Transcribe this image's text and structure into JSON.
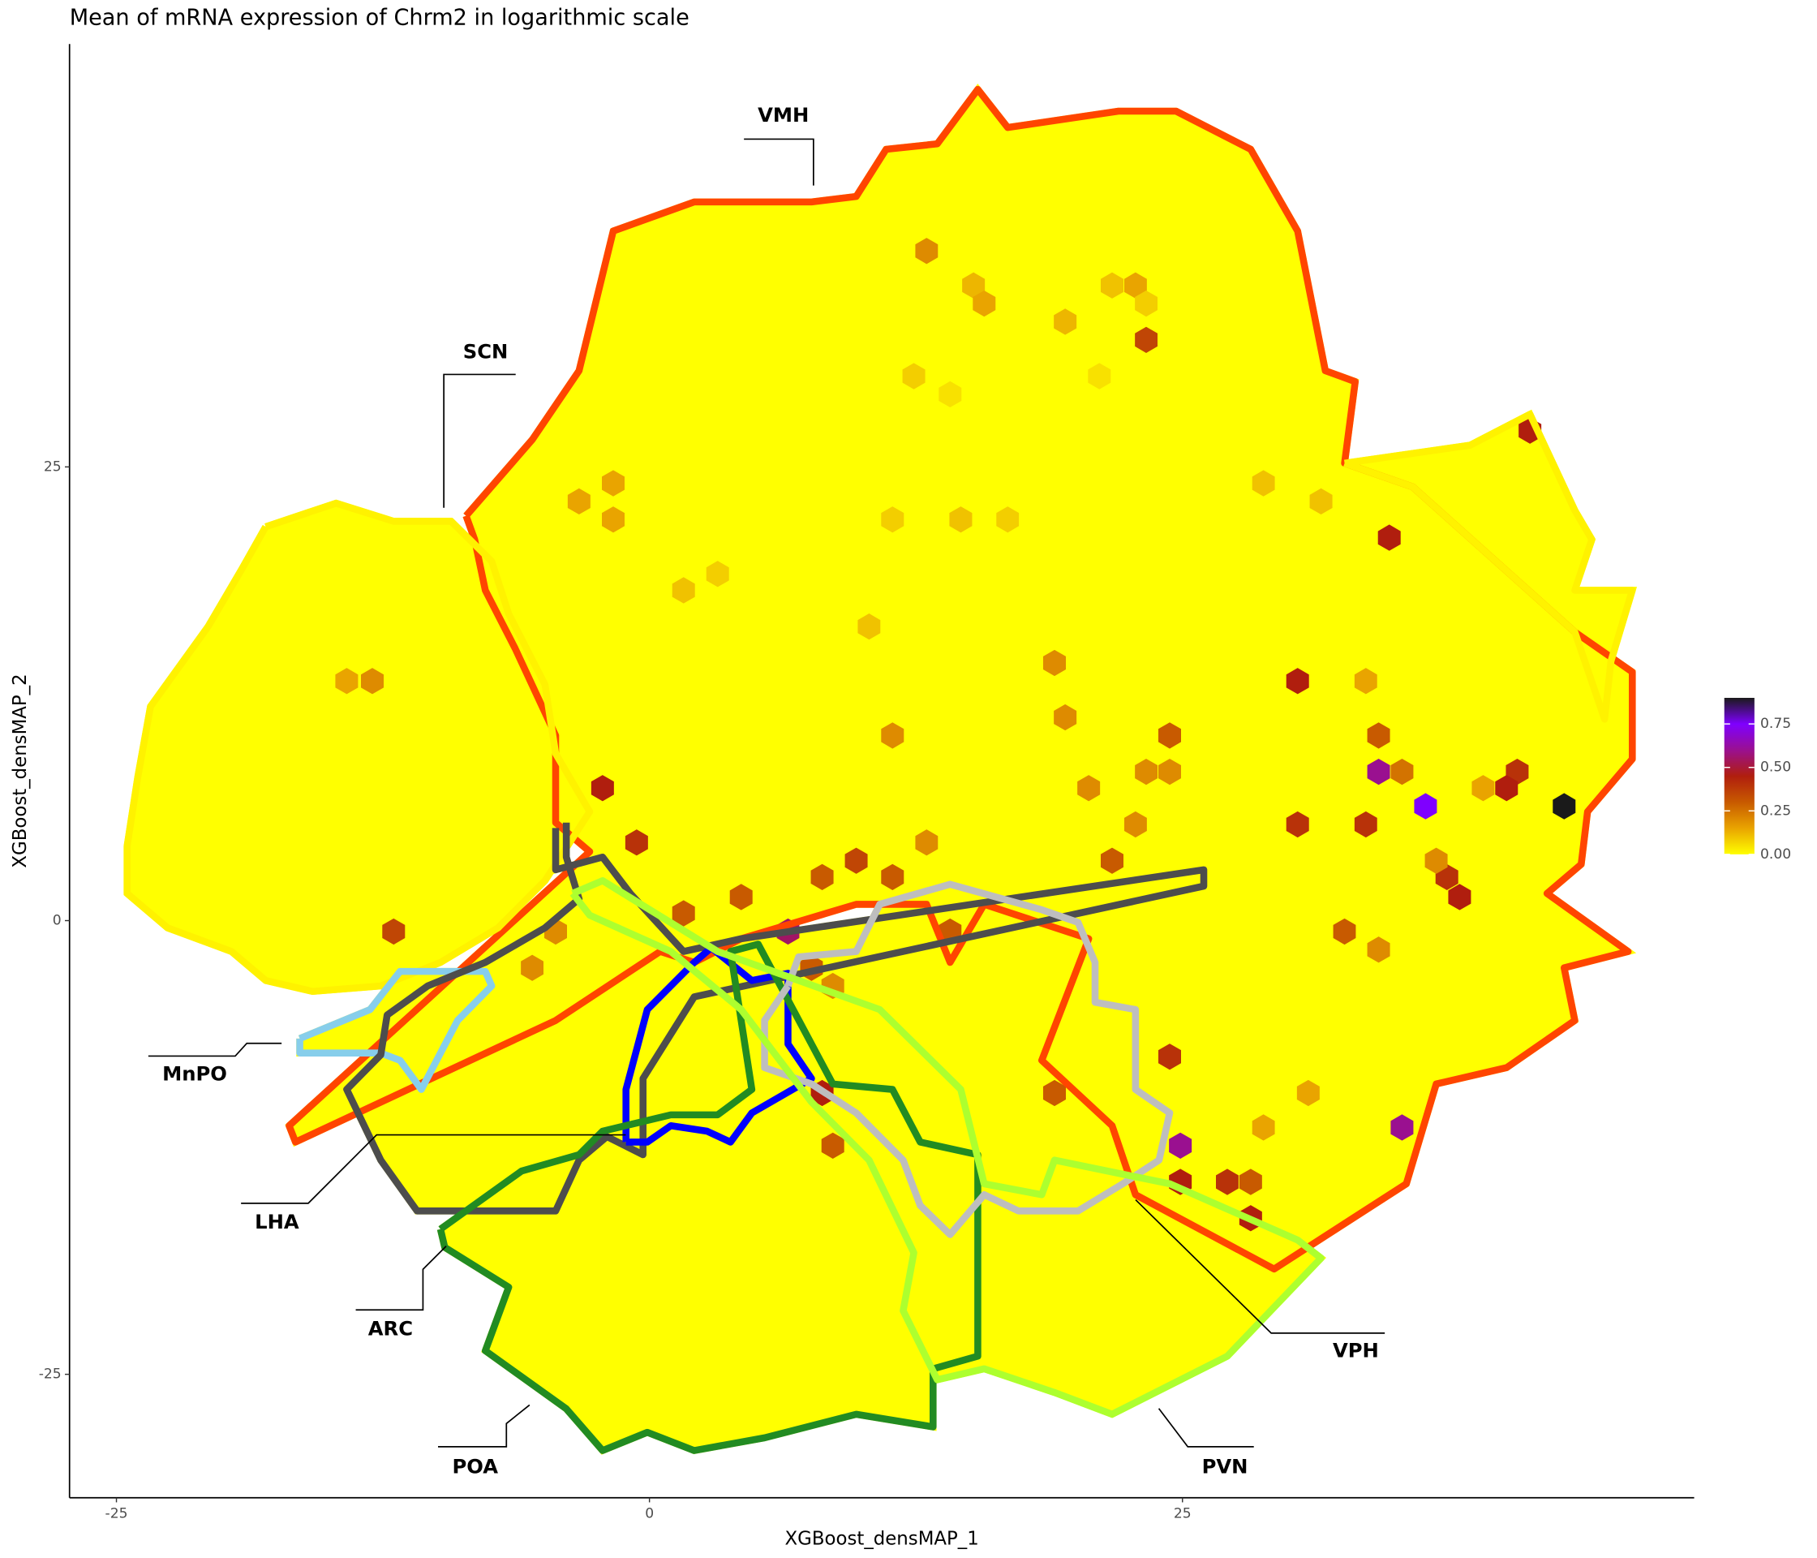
{
  "chart_data": {
    "type": "hexbin",
    "title": "Mean of mRNA expression of Chrm2 in logarithmic scale",
    "x_label": "XGBoost_densMAP_1",
    "y_label": "XGBoost_densMAP_2",
    "xlim": [
      -27.2,
      49.0
    ],
    "ylim": [
      -31.8,
      48.3
    ],
    "xticks": [
      -25,
      0,
      25
    ],
    "yticks": [
      -25,
      0,
      25
    ],
    "colorbar": {
      "lim": [
        0,
        0.9
      ],
      "colors": [
        "#FFFF00",
        "#E9A400",
        "#C85A00",
        "#B01E0E",
        "#9A1090",
        "#7F00FF",
        "#1A1A1A"
      ],
      "ticks": [
        {
          "value": 0,
          "label": "0.00"
        },
        {
          "value": 0.25,
          "label": "0.25"
        },
        {
          "value": 0.5,
          "label": "0.50"
        },
        {
          "value": 0.75,
          "label": "0.75"
        }
      ]
    },
    "hexbins": {
      "x": [
        13.0,
        15.2,
        15.7,
        19.5,
        21.7,
        22.8,
        23.3,
        23.3,
        12.4,
        14.1,
        21.1,
        41.3,
        -1.7,
        -3.3,
        -1.7,
        11.4,
        14.6,
        16.8,
        34.7,
        31.5,
        28.8,
        1.6,
        3.2,
        10.3,
        19.0,
        30.4,
        33.6,
        -14.2,
        -13.0,
        19.5,
        11.4,
        24.4,
        34.2,
        -2.2,
        34.2,
        36.4,
        42.9,
        35.3,
        40.7,
        40.2,
        39.1,
        23.3,
        24.4,
        20.6,
        -0.6,
        9.7,
        22.8,
        30.4,
        33.6,
        37.4,
        38.0,
        36.9,
        21.7,
        13.0,
        11.4,
        8.1,
        4.3,
        -12.0,
        -5.5,
        -4.4,
        1.6,
        6.5,
        7.6,
        8.6,
        14.1,
        32.6,
        34.2,
        24.4,
        19.0,
        8.1,
        8.6,
        35.3,
        24.9,
        24.9,
        27.1,
        28.2,
        28.2,
        30.9,
        28.8
      ],
      "y": [
        36.9,
        35.0,
        34.0,
        33.0,
        35.0,
        35.0,
        34.0,
        32.0,
        30.0,
        29.0,
        30.0,
        27.0,
        24.1,
        23.1,
        22.1,
        22.1,
        22.1,
        22.1,
        21.1,
        23.1,
        24.1,
        18.2,
        19.1,
        16.2,
        14.2,
        13.2,
        13.2,
        13.2,
        13.2,
        11.2,
        10.2,
        10.2,
        10.2,
        7.3,
        8.2,
        6.3,
        6.3,
        8.2,
        8.2,
        7.3,
        7.3,
        8.2,
        8.2,
        7.3,
        4.3,
        3.3,
        5.3,
        5.3,
        5.3,
        2.4,
        1.3,
        3.3,
        3.3,
        4.3,
        2.4,
        2.4,
        1.3,
        -0.6,
        -2.6,
        -0.6,
        0.4,
        -0.6,
        -2.6,
        -3.6,
        -0.6,
        -0.6,
        -1.6,
        -7.5,
        -9.5,
        -9.5,
        -12.4,
        -11.4,
        -12.4,
        -14.4,
        -14.4,
        -14.4,
        -16.4,
        -9.5,
        -11.4
      ],
      "values": [
        0.2,
        0.12,
        0.15,
        0.12,
        0.1,
        0.15,
        0.08,
        0.35,
        0.08,
        0.05,
        0.05,
        0.45,
        0.15,
        0.15,
        0.15,
        0.08,
        0.1,
        0.08,
        0.45,
        0.1,
        0.1,
        0.1,
        0.08,
        0.1,
        0.2,
        0.45,
        0.15,
        0.15,
        0.2,
        0.2,
        0.2,
        0.3,
        0.3,
        0.45,
        0.6,
        0.75,
        0.9,
        0.25,
        0.4,
        0.45,
        0.15,
        0.2,
        0.2,
        0.2,
        0.4,
        0.35,
        0.2,
        0.4,
        0.4,
        0.4,
        0.45,
        0.2,
        0.3,
        0.2,
        0.3,
        0.3,
        0.3,
        0.35,
        0.2,
        0.2,
        0.3,
        0.55,
        0.3,
        0.2,
        0.3,
        0.3,
        0.2,
        0.4,
        0.3,
        0.45,
        0.3,
        0.6,
        0.6,
        0.45,
        0.4,
        0.3,
        0.45,
        0.15,
        0.15
      ]
    },
    "regions": [
      {
        "name": "VMH",
        "color": "#FF4500",
        "x": [
          -8.6,
          -5.5,
          -3.3,
          -1.7,
          2.1,
          7.6,
          9.7,
          11.1,
          13.5,
          15.4,
          16.8,
          22.0,
          24.7,
          28.2,
          30.4,
          31.7,
          33.1,
          32.6,
          35.8,
          43.4,
          46.1,
          46.1,
          44.0,
          43.7,
          42.1,
          45.9,
          42.9,
          43.4,
          40.2,
          36.9,
          35.5,
          29.3,
          22.8,
          21.7,
          18.4,
          20.6,
          15.7,
          14.1,
          13.0,
          9.7,
          4.3,
          2.1,
          0.5,
          -4.4,
          -16.6,
          -16.9,
          -2.8,
          -4.4,
          -4.4,
          -6.3,
          -7.7,
          -8.2,
          -8.6
        ],
        "y": [
          22.3,
          26.5,
          30.3,
          38.0,
          39.6,
          39.6,
          39.9,
          42.5,
          42.8,
          45.8,
          43.7,
          44.6,
          44.6,
          42.5,
          38.0,
          30.3,
          29.7,
          25.2,
          23.9,
          15.9,
          13.7,
          8.9,
          6.0,
          3.1,
          1.5,
          -1.7,
          -2.6,
          -5.5,
          -8.1,
          -9.0,
          -14.5,
          -19.2,
          -15.1,
          -11.3,
          -7.7,
          -1.0,
          0.9,
          -2.3,
          0.9,
          0.9,
          -1.0,
          -2.3,
          -1.7,
          -5.5,
          -12.2,
          -11.3,
          3.8,
          5.4,
          10.2,
          15.0,
          18.2,
          21.0,
          22.3
        ]
      },
      {
        "name": "SCN",
        "color": "#FFF200",
        "x": [
          -18.0,
          -14.7,
          -12.0,
          -9.3,
          -7.4,
          -6.6,
          -4.9,
          -4.4,
          -2.8,
          -4.9,
          -7.1,
          -9.8,
          -12.6,
          -15.8,
          -18.0,
          -19.6,
          -22.6,
          -24.5,
          -24.5,
          -24.0,
          -23.4,
          -20.7,
          -19.1,
          -18.0,
          null,
          32.6,
          38.5,
          41.3,
          43.4,
          44.2,
          43.4,
          46.1,
          45.1,
          44.8,
          43.4,
          35.8,
          32.6
        ],
        "y": [
          21.7,
          23.0,
          22.0,
          22.0,
          19.8,
          16.9,
          13.0,
          9.2,
          6.0,
          2.2,
          -0.4,
          -2.3,
          -3.6,
          -3.9,
          -3.3,
          -1.7,
          -0.4,
          1.5,
          4.1,
          7.9,
          11.8,
          16.2,
          19.4,
          21.7,
          null,
          25.2,
          26.2,
          27.9,
          22.6,
          21.0,
          18.2,
          18.2,
          14.3,
          11.1,
          15.9,
          23.9,
          25.2
        ]
      },
      {
        "name": "MnPO",
        "color": "#87CEEB",
        "x": [
          -16.4,
          -13.1,
          -11.7,
          -7.7,
          -7.4,
          -9.0,
          -10.7,
          -11.7,
          -12.6,
          -16.4,
          -16.4
        ],
        "y": [
          -6.5,
          -4.9,
          -2.8,
          -2.8,
          -3.6,
          -5.5,
          -9.3,
          -7.7,
          -7.3,
          -7.3,
          -6.5
        ]
      },
      {
        "name": "LHA",
        "color": "#4D4D4D",
        "x": [
          -4.4,
          -4.4,
          -2.2,
          -0.9,
          1.6,
          4.3,
          26.0,
          26.0,
          2.1,
          -0.3,
          -0.3,
          -2.0,
          -3.3,
          -4.4,
          -10.9,
          -12.6,
          -14.2,
          -12.6,
          -12.3,
          -10.4,
          -7.7,
          -4.9,
          -3.3,
          -3.9,
          -3.9
        ],
        "y": [
          5.1,
          2.8,
          3.5,
          1.5,
          -1.7,
          -1.0,
          2.8,
          1.9,
          -4.2,
          -8.7,
          -12.9,
          -11.9,
          -13.2,
          -16.0,
          -16.0,
          -13.2,
          -9.3,
          -7.4,
          -5.2,
          -3.6,
          -2.3,
          -0.4,
          1.2,
          3.5,
          5.4
        ]
      },
      {
        "name": "ARC",
        "color": "#0000FF",
        "x": [
          -1.1,
          -1.1,
          -0.1,
          2.1,
          2.9,
          4.8,
          6.5,
          6.5,
          7.6,
          4.8,
          3.8,
          2.7,
          1.0,
          -0.1,
          -1.1
        ],
        "y": [
          -12.2,
          -9.3,
          -4.9,
          -2.3,
          -1.5,
          -3.3,
          -2.9,
          -6.8,
          -8.7,
          -10.6,
          -12.2,
          -11.6,
          -11.3,
          -12.2,
          -12.2
        ]
      },
      {
        "name": "POA",
        "color": "#228B22",
        "x": [
          -9.8,
          -6.0,
          -3.3,
          -2.2,
          1.0,
          3.2,
          4.8,
          3.8,
          5.1,
          8.6,
          11.4,
          12.7,
          15.4,
          15.4,
          13.3,
          13.3,
          9.7,
          5.4,
          2.1,
          -0.1,
          -2.2,
          -3.9,
          -7.7,
          -6.6,
          -9.6,
          -9.8
        ],
        "y": [
          -17.0,
          -13.8,
          -12.9,
          -11.6,
          -10.7,
          -10.7,
          -9.3,
          -1.7,
          -1.3,
          -9.0,
          -9.3,
          -12.2,
          -12.9,
          -24.0,
          -24.7,
          -27.9,
          -27.2,
          -28.5,
          -29.2,
          -28.2,
          -29.2,
          -26.9,
          -23.7,
          -20.2,
          -18.0,
          -17.0
        ]
      },
      {
        "name": "VPH",
        "color": "#BEBEBE",
        "x": [
          6.5,
          7.0,
          9.7,
          10.8,
          14.1,
          18.4,
          20.1,
          20.9,
          20.9,
          22.8,
          22.8,
          24.4,
          23.9,
          22.2,
          20.1,
          17.3,
          15.7,
          14.1,
          12.7,
          11.9,
          9.7,
          7.6,
          5.4,
          5.4,
          6.5
        ],
        "y": [
          -3.6,
          -2.0,
          -1.7,
          0.9,
          2.0,
          0.6,
          -0.1,
          -2.3,
          -4.5,
          -4.9,
          -9.3,
          -10.6,
          -13.2,
          -14.5,
          -16.0,
          -16.0,
          -15.1,
          -17.3,
          -15.7,
          -13.2,
          -10.6,
          -9.0,
          -8.1,
          -5.5,
          -3.6
        ]
      },
      {
        "name": "PVN",
        "color": "#ADFF2F",
        "x": [
          -3.6,
          -2.2,
          3.2,
          10.8,
          14.6,
          15.7,
          18.4,
          19.0,
          24.4,
          30.4,
          31.5,
          27.1,
          21.7,
          19.0,
          15.7,
          13.5,
          11.9,
          12.4,
          10.3,
          7.6,
          4.3,
          1.0,
          -2.8,
          -3.6
        ],
        "y": [
          1.5,
          2.2,
          -1.7,
          -4.9,
          -9.3,
          -14.5,
          -15.1,
          -13.2,
          -14.5,
          -17.6,
          -18.6,
          -24.0,
          -27.2,
          -26.0,
          -24.7,
          -25.3,
          -21.5,
          -18.3,
          -13.2,
          -10.0,
          -4.9,
          -1.7,
          0.3,
          1.5
        ]
      }
    ]
  }
}
